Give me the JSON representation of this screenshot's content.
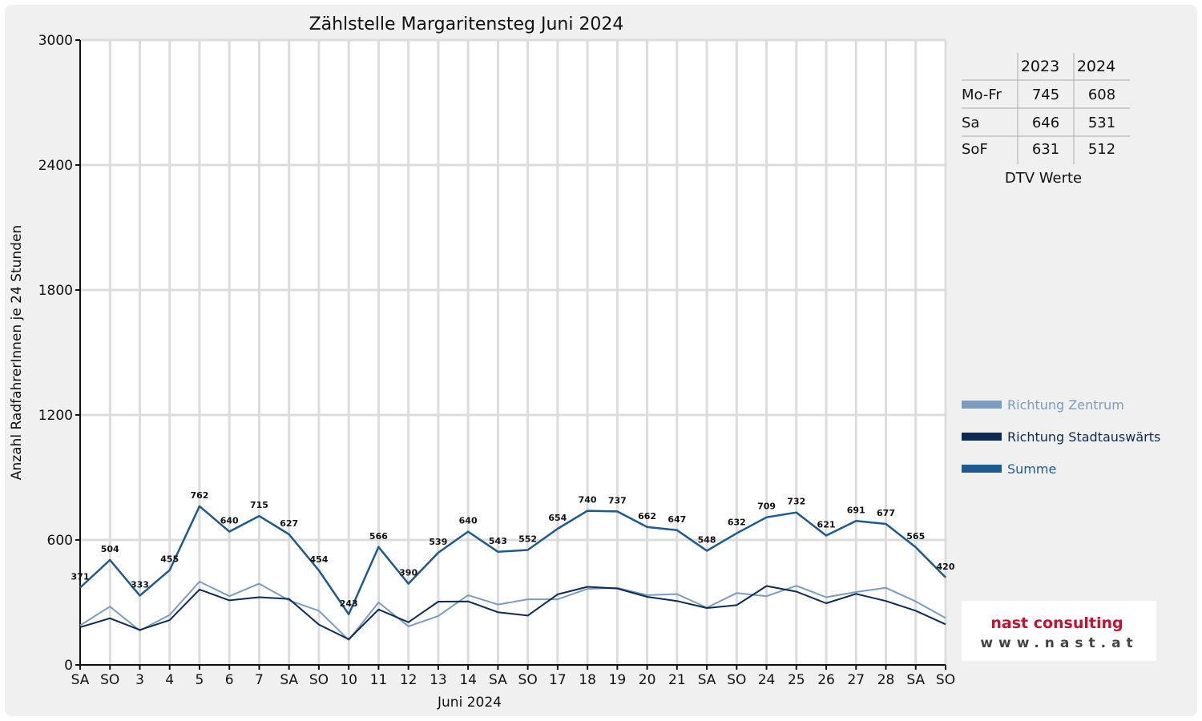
{
  "chart_data": {
    "type": "line",
    "title": "Zählstelle Margaritensteg Juni 2024",
    "xlabel": "Juni 2024",
    "ylabel": "Anzahl RadfahrerInnen je 24 Stunden",
    "ylim": [
      0,
      3000
    ],
    "yticks": [
      "0",
      "600",
      "1200",
      "1800",
      "2400",
      "3000"
    ],
    "categories": [
      "SA",
      "SO",
      "3",
      "4",
      "5",
      "6",
      "7",
      "SA",
      "SO",
      "10",
      "11",
      "12",
      "13",
      "14",
      "SA",
      "SO",
      "17",
      "18",
      "19",
      "20",
      "21",
      "SA",
      "SO",
      "24",
      "25",
      "26",
      "27",
      "28",
      "SA",
      "SO"
    ],
    "weekend_color": "#ff0000",
    "grid": true,
    "legend_position": "right",
    "series": [
      {
        "name": "Richtung Zentrum",
        "color": "#7a9cbf",
        "values": [
          190,
          280,
          165,
          240,
          400,
          330,
          390,
          310,
          260,
          120,
          300,
          185,
          235,
          335,
          290,
          315,
          315,
          365,
          370,
          335,
          340,
          275,
          345,
          330,
          380,
          325,
          350,
          370,
          305,
          225
        ]
      },
      {
        "name": "Richtung Stadtauswärts",
        "color": "#0d2b52",
        "values": [
          181,
          224,
          168,
          215,
          362,
          310,
          325,
          317,
          194,
          123,
          266,
          205,
          304,
          305,
          253,
          237,
          339,
          375,
          367,
          327,
          307,
          273,
          287,
          379,
          352,
          296,
          341,
          307,
          260,
          195
        ]
      },
      {
        "name": "Summe",
        "color": "#1f5a8c",
        "values": [
          371,
          504,
          333,
          455,
          762,
          640,
          715,
          627,
          454,
          243,
          566,
          390,
          539,
          640,
          543,
          552,
          654,
          740,
          737,
          662,
          647,
          548,
          632,
          709,
          732,
          621,
          691,
          677,
          565,
          420
        ],
        "labels": [
          "371",
          "504",
          "333",
          "455",
          "762",
          "640",
          "715",
          "627",
          "454",
          "243",
          "566",
          "390",
          "539",
          "640",
          "543",
          "552",
          "654",
          "740",
          "737",
          "662",
          "647",
          "548",
          "632",
          "709",
          "732",
          "621",
          "691",
          "677",
          "565",
          "420"
        ]
      }
    ]
  },
  "dtv_table": {
    "caption": "DTV Werte",
    "headers": [
      "2023",
      "2024"
    ],
    "rows": [
      {
        "label": "Mo-Fr",
        "v2023": "745",
        "v2024": "608"
      },
      {
        "label": "Sa",
        "v2023": "646",
        "v2024": "531"
      },
      {
        "label": "SoF",
        "v2023": "631",
        "v2024": "512"
      }
    ]
  },
  "logo": {
    "line1": "nast consulting",
    "line2": "www.nast.at",
    "color1": "#c8102e",
    "color2": "#444444"
  }
}
